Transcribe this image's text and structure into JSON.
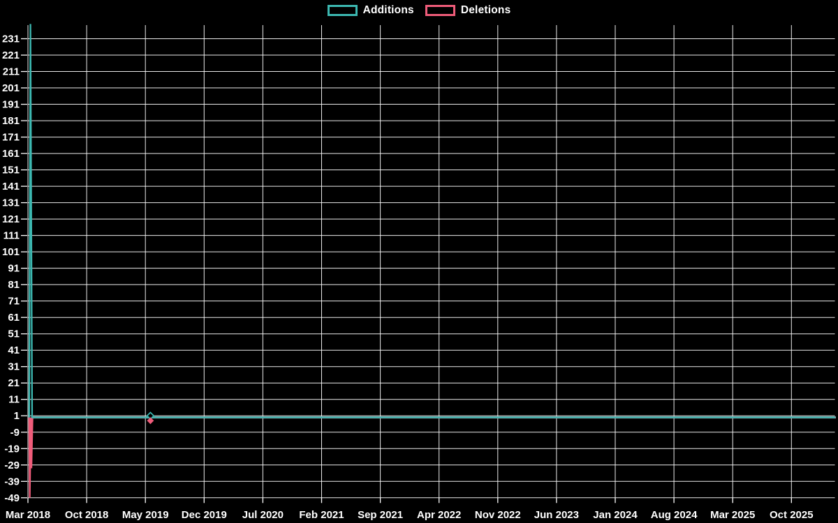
{
  "legend": {
    "position": "top-center",
    "items": [
      {
        "label": "Additions",
        "color": "#3cb8b1"
      },
      {
        "label": "Deletions",
        "color": "#f05c7a"
      }
    ]
  },
  "chart_data": {
    "type": "line",
    "title": "",
    "background_color": "#000000",
    "grid": {
      "show": true,
      "color": "#ffffff"
    },
    "axis_label_color": "#ffffff",
    "x_axis": {
      "tick_labels": [
        "Mar 2018",
        "Oct 2018",
        "May 2019",
        "Dec 2019",
        "Jul 2020",
        "Feb 2021",
        "Sep 2021",
        "Apr 2022",
        "Nov 2022",
        "Jun 2023",
        "Jan 2024",
        "Aug 2024",
        "Mar 2025",
        "Oct 2025"
      ],
      "tick_interval_months": 7,
      "range_months": [
        0,
        96.2
      ]
    },
    "y_axis": {
      "ticks": [
        231,
        221,
        211,
        201,
        191,
        181,
        171,
        161,
        151,
        141,
        131,
        121,
        111,
        101,
        91,
        81,
        71,
        61,
        51,
        41,
        31,
        21,
        11,
        1,
        -9,
        -19,
        -29,
        -39,
        -49
      ],
      "range": [
        -49,
        240
      ]
    },
    "series": [
      {
        "name": "Additions",
        "color": "#3cb8b1",
        "points": [
          [
            0.15,
            0
          ],
          [
            0.3,
            240
          ],
          [
            0.5,
            0
          ],
          [
            96.2,
            0
          ]
        ]
      },
      {
        "name": "Deletions",
        "color": "#f05c7a",
        "points": [
          [
            0.15,
            0
          ],
          [
            0.22,
            -49
          ],
          [
            0.35,
            0
          ],
          [
            0.42,
            -31
          ],
          [
            0.55,
            0
          ],
          [
            96.2,
            0
          ]
        ]
      }
    ],
    "baseline_overlap": {
      "color": "#8fa6b0",
      "value": 0,
      "from_months": 0.4,
      "to_months": 96.3
    },
    "markers": [
      {
        "series": "Additions",
        "x_months": 14.6,
        "value": 1,
        "shape": "diamond-hollow",
        "color": "#3cb8b1"
      },
      {
        "series": "Deletions",
        "x_months": 14.6,
        "value": -2,
        "shape": "diamond-filled",
        "color": "#f05c7a"
      }
    ]
  }
}
